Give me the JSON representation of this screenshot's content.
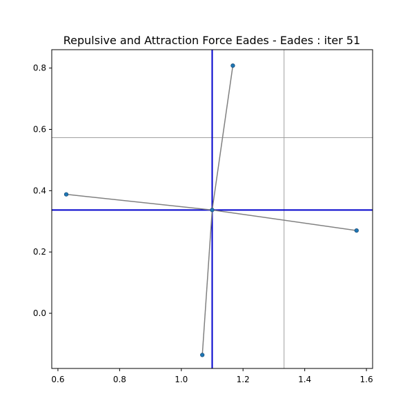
{
  "chart_data": {
    "type": "scatter",
    "title": "Repulsive and Attraction Force Eades - Eades : iter 51",
    "xlabel": "",
    "ylabel": "",
    "xlim": [
      0.58,
      1.62
    ],
    "ylim": [
      -0.18,
      0.86
    ],
    "x_ticks": [
      0.6,
      0.8,
      1.0,
      1.2,
      1.4,
      1.6
    ],
    "x_tick_labels": [
      "0.6",
      "0.8",
      "1.0",
      "1.2",
      "1.4",
      "1.6"
    ],
    "y_ticks": [
      0.0,
      0.2,
      0.4,
      0.6,
      0.8
    ],
    "y_tick_labels": [
      "0.0",
      "0.2",
      "0.4",
      "0.6",
      "0.8"
    ],
    "grid": false,
    "nodes": [
      {
        "x": 1.1,
        "y": 0.337
      },
      {
        "x": 1.167,
        "y": 0.808
      },
      {
        "x": 0.627,
        "y": 0.388
      },
      {
        "x": 1.568,
        "y": 0.27
      },
      {
        "x": 1.068,
        "y": -0.136
      }
    ],
    "edges": [
      [
        0,
        1
      ],
      [
        0,
        2
      ],
      [
        0,
        3
      ],
      [
        0,
        4
      ]
    ],
    "center_lines": {
      "x": 1.1,
      "y": 0.337
    },
    "reference_lines": {
      "x": 1.333,
      "y": 0.573
    },
    "colors": {
      "node": "#1f77b4",
      "edge": "#808080",
      "center_line": "#0000cc",
      "reference_line": "#a0a0a0"
    }
  }
}
